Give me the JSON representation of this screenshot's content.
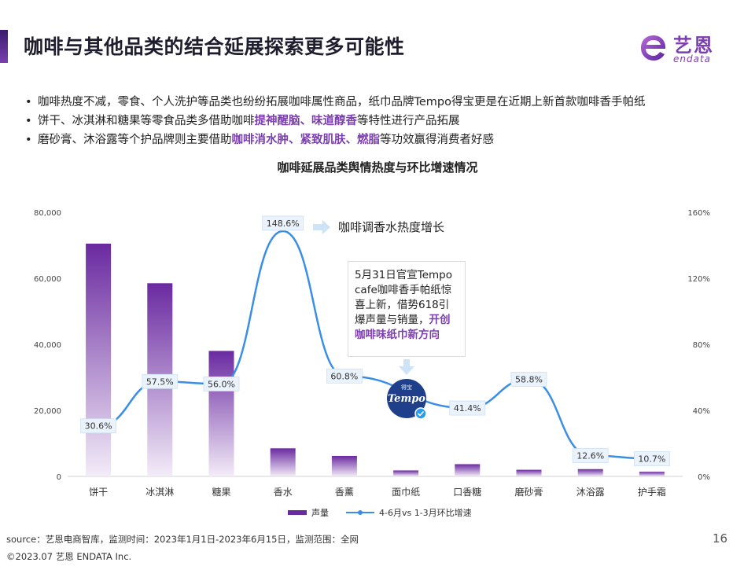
{
  "header": {
    "title": "咖啡与其他品类的结合延展探索更多可能性",
    "logo_cn": "艺恩",
    "logo_en": "endata"
  },
  "bullets": [
    {
      "parts": [
        {
          "text": "咖啡热度不减，零食、个人洗护等品类也纷纷拓展咖啡属性商品，纸巾品牌Tempo得宝更是在近期上新首款咖啡香手帕纸",
          "hl": false
        }
      ]
    },
    {
      "parts": [
        {
          "text": "饼干、冰淇淋和糖果等零食品类多借助咖啡",
          "hl": false
        },
        {
          "text": "提神醒脑、味道醇香",
          "hl": true
        },
        {
          "text": "等特性进行产品拓展",
          "hl": false
        }
      ]
    },
    {
      "parts": [
        {
          "text": "磨砂膏、沐浴露等个护品牌则主要借助",
          "hl": false
        },
        {
          "text": "咖啡消水肿、紧致肌肤、燃脂",
          "hl": true
        },
        {
          "text": "等功效赢得消费者好感",
          "hl": false
        }
      ]
    }
  ],
  "annotations": {
    "note": "咖啡调香水热度增长",
    "callout_plain": "5月31日官宣Tempo cafe咖啡香手帕纸惊喜上新，借势618引爆声量与销量，",
    "callout_bold": "开创咖啡味纸巾新方向",
    "badge_text": "Tempo",
    "badge_small": "得宝"
  },
  "chart_data": {
    "type": "bar",
    "title": "咖啡延展品类舆情热度与环比增速情况",
    "categories": [
      "饼干",
      "冰淇淋",
      "糖果",
      "香水",
      "香薰",
      "面巾纸",
      "口香糖",
      "磨砂膏",
      "沐浴露",
      "护手霜"
    ],
    "series": [
      {
        "name": "声量",
        "type": "bar",
        "axis": "left",
        "values": [
          70500,
          58500,
          38000,
          8500,
          6200,
          1800,
          3700,
          2000,
          2200,
          1400
        ]
      },
      {
        "name": "4-6月vs 1-3月环比增速",
        "type": "line",
        "axis": "right",
        "values": [
          30.6,
          57.5,
          56.0,
          148.6,
          60.8,
          null,
          41.4,
          58.8,
          12.6,
          10.7
        ],
        "labels": [
          "30.6%",
          "57.5%",
          "56.0%",
          "148.6%",
          "60.8%",
          "",
          "41.4%",
          "58.8%",
          "12.6%",
          "10.7%"
        ]
      }
    ],
    "y_left": {
      "ticks": [
        "0",
        "20,000",
        "40,000",
        "60,000",
        "80,000"
      ],
      "range": [
        0,
        80000
      ]
    },
    "y_right": {
      "ticks": [
        "0%",
        "40%",
        "80%",
        "120%",
        "160%"
      ],
      "range": [
        0,
        160
      ]
    },
    "legend_position": "bottom",
    "colors": {
      "bar_top": "#6a2aa0",
      "bar_bottom": "#f3ecf8",
      "line": "#3a8ee6"
    }
  },
  "footer": {
    "source": "source：艺恩电商智库，监测时间：2023年1月1日-2023年6月15日，监测范围：全网",
    "copyright": "©2023.07 艺恩 ENDATA Inc.",
    "page": "16"
  }
}
